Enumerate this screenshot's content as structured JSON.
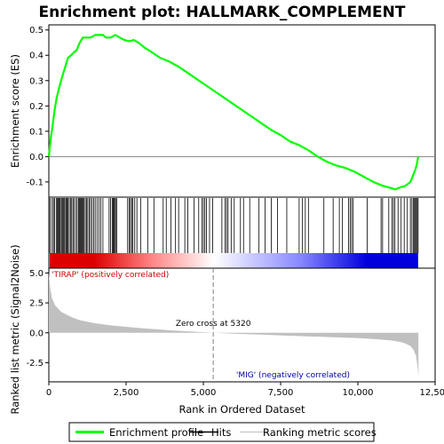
{
  "chart_data": {
    "type": "line",
    "title": "Enrichment plot: HALLMARK_COMPLEMENT",
    "top_panel": {
      "ylabel": "Enrichment score (ES)",
      "ylim": [
        -0.16,
        0.52
      ],
      "yticks": [
        -0.1,
        0.0,
        0.1,
        0.2,
        0.3,
        0.4,
        0.5
      ],
      "ytick_labels": [
        "-0.1",
        "0.0",
        "0.1",
        "0.2",
        "0.3",
        "0.4",
        "0.5"
      ],
      "series": [
        {
          "name": "Enrichment profile",
          "color": "#00ff00",
          "x": [
            0,
            60,
            120,
            180,
            250,
            330,
            420,
            520,
            620,
            720,
            800,
            900,
            1000,
            1100,
            1200,
            1350,
            1500,
            1650,
            1750,
            1850,
            2000,
            2150,
            2300,
            2450,
            2600,
            2750,
            2900,
            3100,
            3300,
            3600,
            3900,
            4200,
            4500,
            4800,
            5100,
            5400,
            5700,
            6000,
            6300,
            6600,
            6900,
            7200,
            7500,
            7800,
            8100,
            8400,
            8700,
            9000,
            9300,
            9600,
            9900,
            10200,
            10500,
            10800,
            11100,
            11200,
            11300,
            11400,
            11500,
            11600,
            11700,
            11750,
            11800,
            11850,
            11900,
            11950
          ],
          "y": [
            0.0,
            0.07,
            0.12,
            0.18,
            0.23,
            0.27,
            0.31,
            0.35,
            0.39,
            0.4,
            0.41,
            0.42,
            0.45,
            0.47,
            0.47,
            0.47,
            0.48,
            0.48,
            0.48,
            0.47,
            0.47,
            0.48,
            0.47,
            0.46,
            0.455,
            0.46,
            0.45,
            0.43,
            0.415,
            0.39,
            0.375,
            0.355,
            0.33,
            0.305,
            0.28,
            0.255,
            0.23,
            0.205,
            0.18,
            0.155,
            0.13,
            0.105,
            0.085,
            0.06,
            0.045,
            0.025,
            0.0,
            -0.02,
            -0.035,
            -0.045,
            -0.06,
            -0.08,
            -0.1,
            -0.115,
            -0.125,
            -0.13,
            -0.125,
            -0.12,
            -0.118,
            -0.11,
            -0.1,
            -0.085,
            -0.07,
            -0.055,
            -0.035,
            0.0
          ]
        }
      ]
    },
    "hits": [
      8,
      50,
      110,
      150,
      190,
      240,
      270,
      300,
      330,
      360,
      400,
      430,
      460,
      490,
      520,
      560,
      590,
      620,
      660,
      700,
      740,
      780,
      820,
      880,
      920,
      960,
      990,
      1020,
      1050,
      1080,
      1110,
      1140,
      1180,
      1220,
      1260,
      1310,
      1350,
      1400,
      1450,
      1500,
      1560,
      1620,
      1680,
      1750,
      1950,
      2000,
      2050,
      2080,
      2100,
      2130,
      2160,
      2200,
      2550,
      2600,
      2640,
      2680,
      2720,
      2780,
      2850,
      2970,
      3200,
      3400,
      3700,
      3800,
      3950,
      4100,
      4200,
      4400,
      4500,
      4700,
      4850,
      4950,
      5000,
      5050,
      5100,
      5200,
      5300,
      5600,
      5700,
      5750,
      5800,
      5900,
      6000,
      6200,
      6300,
      6500,
      6800,
      7000,
      7200,
      7400,
      7700,
      8100,
      8200,
      8300,
      8400,
      8900,
      9200,
      9400,
      9500,
      9700,
      9750,
      9800,
      9850,
      10300,
      10750,
      10800,
      11000,
      11100,
      11150,
      11200,
      11300,
      11400,
      11500,
      11600,
      11700,
      11750,
      11800,
      11830,
      11860,
      11890,
      11920,
      11950
    ],
    "bottom_panel": {
      "ylabel": "Ranked list metric (Signal2Noise)",
      "ylim": [
        -4.1,
        5.4
      ],
      "yticks": [
        -2.5,
        0.0,
        2.5,
        5.0
      ],
      "ytick_labels": [
        "-2.5",
        "0.0",
        "2.5",
        "5.0"
      ],
      "metric_profile": {
        "x": [
          0,
          40,
          100,
          200,
          400,
          700,
          1000,
          1500,
          2000,
          3000,
          4000,
          5000,
          5320,
          6000,
          7000,
          8000,
          9000,
          10000,
          10500,
          11000,
          11300,
          11500,
          11700,
          11800,
          11880,
          11930,
          11960
        ],
        "y": [
          5.0,
          3.8,
          2.9,
          2.3,
          1.75,
          1.35,
          1.05,
          0.8,
          0.62,
          0.38,
          0.2,
          0.05,
          0.0,
          -0.08,
          -0.17,
          -0.27,
          -0.35,
          -0.45,
          -0.52,
          -0.62,
          -0.72,
          -0.85,
          -1.1,
          -1.4,
          -1.9,
          -2.8,
          -3.7
        ]
      },
      "zero_cross_x": 5320,
      "zero_cross_label": "Zero cross at 5320",
      "pos_label": "'TIRAP' (positively correlated)",
      "neg_label": "'MIG' (negatively correlated)"
    },
    "xaxis": {
      "label": "Rank in Ordered Dataset",
      "xlim": [
        0,
        12500
      ],
      "ticks": [
        0,
        2500,
        5000,
        7500,
        10000,
        12500
      ],
      "tick_labels": [
        "0",
        "2,500",
        "5,000",
        "7,500",
        "10,000",
        "12,500"
      ]
    },
    "n_genes": 11950,
    "legend": {
      "placement": "bottom",
      "items": [
        {
          "label": "Enrichment profile",
          "color": "#00ff00"
        },
        {
          "label": "Hits",
          "color": "#000000"
        },
        {
          "label": "Ranking metric scores",
          "color": "#c0c0c0"
        }
      ]
    },
    "colors": {
      "positive": "#dd0000",
      "negative": "#0000dd",
      "metric_fill": "#c0c0c0",
      "zero_line": "#808080",
      "pos_label": "#cc0000",
      "neg_label": "#0000aa"
    }
  }
}
